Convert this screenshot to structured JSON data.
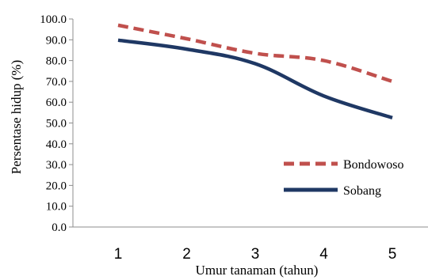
{
  "chart_data": {
    "type": "line",
    "title": "",
    "xlabel": "Umur tanaman  (tahun)",
    "ylabel": "Persentase hidup (%)",
    "categories": [
      "1",
      "2",
      "3",
      "4",
      "5"
    ],
    "ylim": [
      0,
      100
    ],
    "ytick_step": 10,
    "y_ticks": [
      "0.0",
      "10.0",
      "20.0",
      "30.0",
      "40.0",
      "50.0",
      "60.0",
      "70.0",
      "80.0",
      "90.0",
      "100.0"
    ],
    "grid": false,
    "legend_position": "right",
    "series": [
      {
        "name": "Bondowoso",
        "values": [
          97.0,
          90.5,
          83.5,
          80.0,
          70.0
        ],
        "color": "#c0504d",
        "style": "dashed"
      },
      {
        "name": "Sobang",
        "values": [
          89.8,
          85.5,
          78.5,
          63.0,
          52.5
        ],
        "color": "#1f3864",
        "style": "solid"
      }
    ]
  }
}
